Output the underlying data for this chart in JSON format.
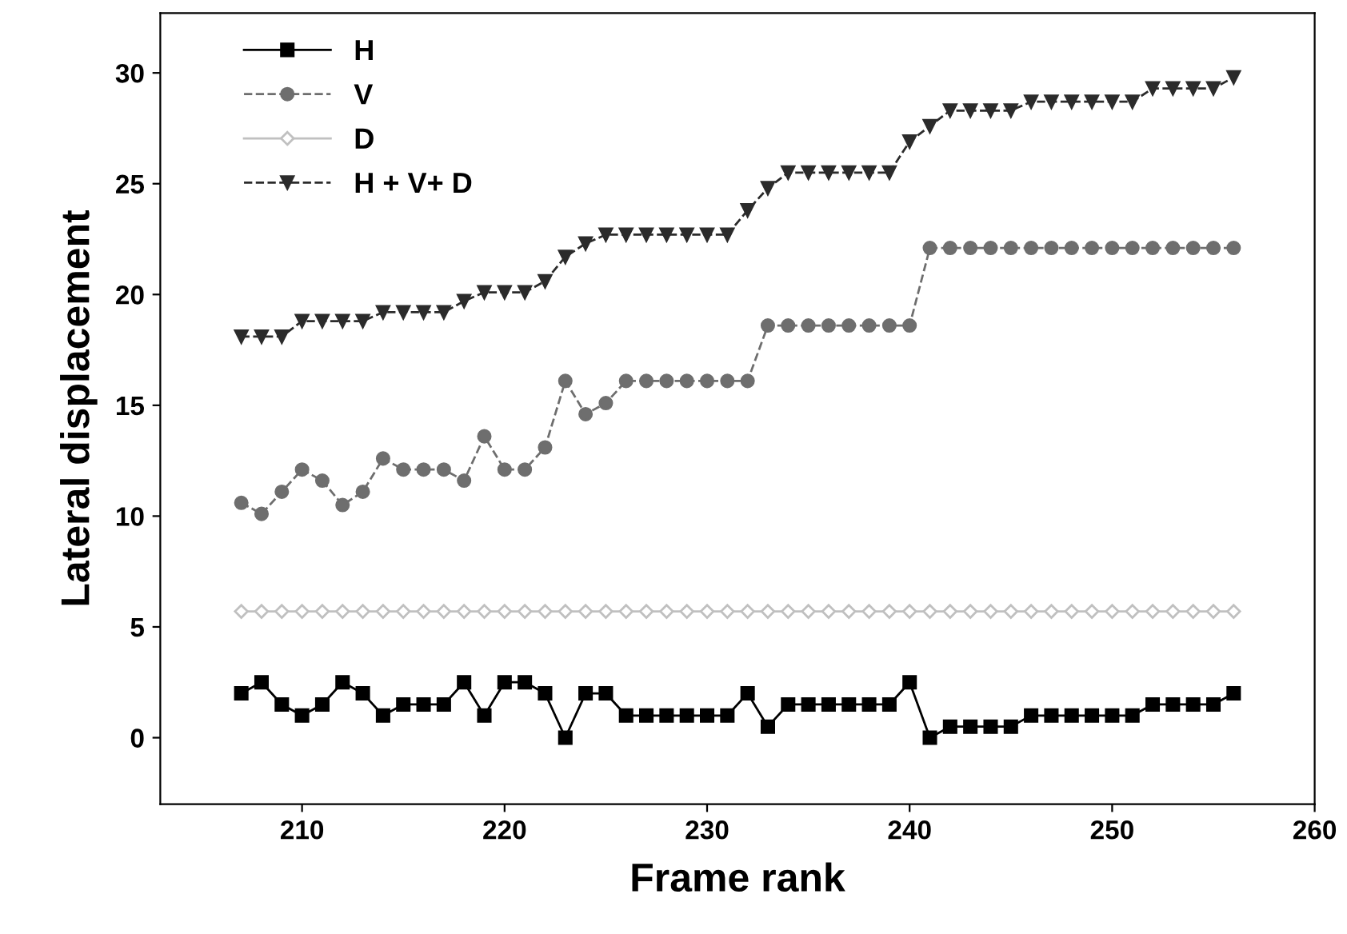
{
  "chart_data": {
    "type": "line",
    "xlabel": "Frame rank",
    "ylabel": "Lateral displacement",
    "x": [
      207,
      208,
      209,
      210,
      211,
      212,
      213,
      214,
      215,
      216,
      217,
      218,
      219,
      220,
      221,
      222,
      223,
      224,
      225,
      226,
      227,
      228,
      229,
      230,
      231,
      232,
      233,
      234,
      235,
      236,
      237,
      238,
      239,
      240,
      241,
      242,
      243,
      244,
      245,
      246,
      247,
      248,
      249,
      250,
      251,
      252,
      253,
      254,
      255,
      256
    ],
    "series": [
      {
        "name": "H",
        "color": "#000000",
        "marker": "square",
        "line_style": "solid",
        "values": [
          2,
          2.5,
          1.5,
          1,
          1.5,
          2.5,
          2,
          1,
          1.5,
          1.5,
          1.5,
          2.5,
          1,
          2.5,
          2.5,
          2,
          0,
          2,
          2,
          1,
          1,
          1,
          1,
          1,
          1,
          2,
          0.5,
          1.5,
          1.5,
          1.5,
          1.5,
          1.5,
          1.5,
          2.5,
          0,
          0.5,
          0.5,
          0.5,
          0.5,
          1,
          1,
          1,
          1,
          1,
          1,
          1.5,
          1.5,
          1.5,
          1.5,
          2
        ]
      },
      {
        "name": "V",
        "color": "#6e6e6e",
        "marker": "circle",
        "line_style": "dashed",
        "values": [
          10.6,
          10.1,
          11.1,
          12.1,
          11.6,
          10.5,
          11.1,
          12.6,
          12.1,
          12.1,
          12.1,
          11.6,
          13.6,
          12.1,
          12.1,
          13.1,
          16.1,
          14.6,
          15.1,
          16.1,
          16.1,
          16.1,
          16.1,
          16.1,
          16.1,
          16.1,
          18.6,
          18.6,
          18.6,
          18.6,
          18.6,
          18.6,
          18.6,
          18.6,
          22.1,
          22.1,
          22.1,
          22.1,
          22.1,
          22.1,
          22.1,
          22.1,
          22.1,
          22.1,
          22.1,
          22.1,
          22.1,
          22.1,
          22.1,
          22.1
        ]
      },
      {
        "name": "D",
        "color": "#c0c0c0",
        "marker": "diamond",
        "line_style": "solid",
        "values": [
          5.7,
          5.7,
          5.7,
          5.7,
          5.7,
          5.7,
          5.7,
          5.7,
          5.7,
          5.7,
          5.7,
          5.7,
          5.7,
          5.7,
          5.7,
          5.7,
          5.7,
          5.7,
          5.7,
          5.7,
          5.7,
          5.7,
          5.7,
          5.7,
          5.7,
          5.7,
          5.7,
          5.7,
          5.7,
          5.7,
          5.7,
          5.7,
          5.7,
          5.7,
          5.7,
          5.7,
          5.7,
          5.7,
          5.7,
          5.7,
          5.7,
          5.7,
          5.7,
          5.7,
          5.7,
          5.7,
          5.7,
          5.7,
          5.7,
          5.7
        ]
      },
      {
        "name": "H + V+ D",
        "color": "#2b2b2b",
        "marker": "triangle",
        "line_style": "dashed",
        "values": [
          18.1,
          18.1,
          18.1,
          18.8,
          18.8,
          18.8,
          18.8,
          19.2,
          19.2,
          19.2,
          19.2,
          19.7,
          20.1,
          20.1,
          20.1,
          20.6,
          21.7,
          22.3,
          22.7,
          22.7,
          22.7,
          22.7,
          22.7,
          22.7,
          22.7,
          23.8,
          24.8,
          25.5,
          25.5,
          25.5,
          25.5,
          25.5,
          25.5,
          26.9,
          27.6,
          28.3,
          28.3,
          28.3,
          28.3,
          28.7,
          28.7,
          28.7,
          28.7,
          28.7,
          28.7,
          29.3,
          29.3,
          29.3,
          29.3,
          29.8
        ]
      }
    ],
    "xlim": [
      203,
      260
    ],
    "xticks": [
      210,
      220,
      230,
      240,
      250,
      260
    ],
    "ylim": [
      -3,
      32.7
    ],
    "yticks": [
      0,
      5,
      10,
      15,
      20,
      25,
      30
    ],
    "grid": false,
    "legend": "top left"
  }
}
